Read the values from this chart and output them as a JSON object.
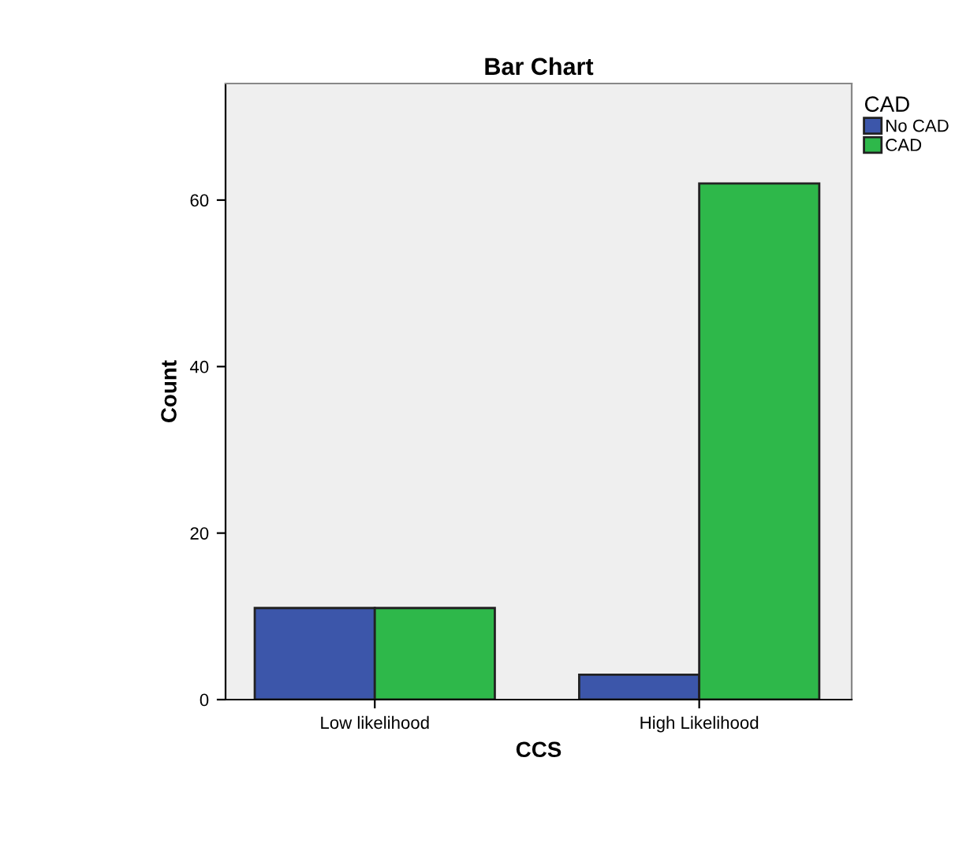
{
  "chart_data": {
    "type": "bar",
    "title": "Bar Chart",
    "xlabel": "CCS",
    "ylabel": "Count",
    "legend_title": "CAD",
    "categories": [
      "Low likelihood",
      "High Likelihood"
    ],
    "series": [
      {
        "name": "No CAD",
        "color": "#3c56aa",
        "values": [
          11,
          3
        ]
      },
      {
        "name": "CAD",
        "color": "#2eb84a",
        "values": [
          11,
          62
        ]
      }
    ],
    "ylim": [
      0,
      74
    ],
    "yticks": [
      0,
      20,
      40,
      60
    ],
    "grid": false,
    "legend": "top right"
  }
}
